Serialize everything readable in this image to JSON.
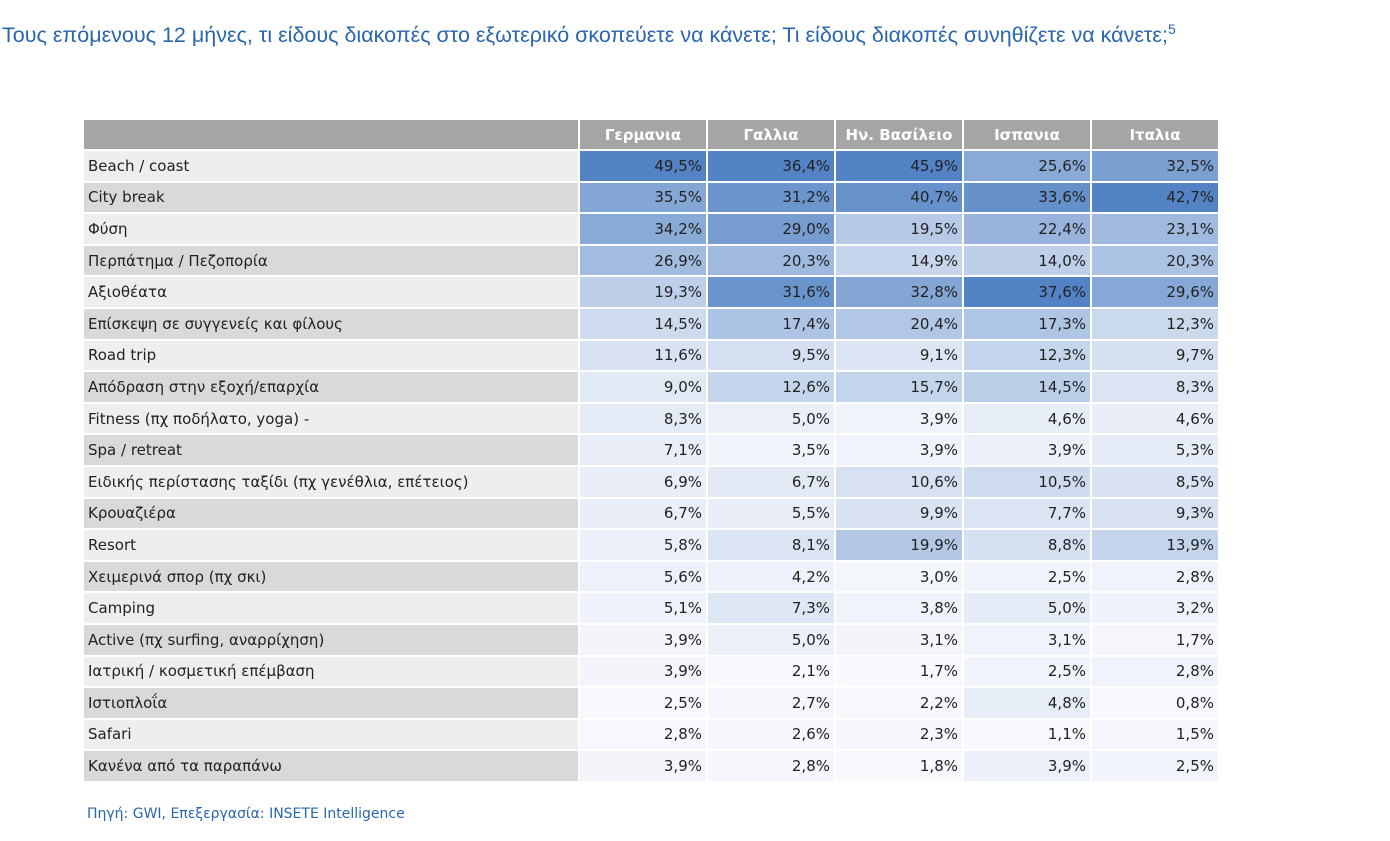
{
  "title": "Τους επόμενους 12 μήνες, τι είδους διακοπές στο εξωτερικό σκοπεύετε να κάνετε; Τι είδους διακοπές συνηθίζετε να κάνετε;",
  "title_footnote": "5",
  "source": "Πηγή: GWI, Επεξεργασία: INSETE Intelligence",
  "colors": {
    "low": "#f8f9fd",
    "high": "#5383c4",
    "header": "#a5a5a5",
    "title": "#2a66ab"
  },
  "chart_data": {
    "type": "heatmap",
    "columns": [
      "Γερμανια",
      "Γαλλια",
      "Ην. Βασίλειο",
      "Ισπανια",
      "Ιταλια"
    ],
    "rows": [
      {
        "label": "Beach / coast",
        "values": [
          "49,5%",
          "36,4%",
          "45,9%",
          "25,6%",
          "32,5%"
        ]
      },
      {
        "label": "City break",
        "values": [
          "35,5%",
          "31,2%",
          "40,7%",
          "33,6%",
          "42,7%"
        ]
      },
      {
        "label": "Φύση",
        "values": [
          "34,2%",
          "29,0%",
          "19,5%",
          "22,4%",
          "23,1%"
        ]
      },
      {
        "label": "Περπάτημα /  Πεζοπορία",
        "values": [
          "26,9%",
          "20,3%",
          "14,9%",
          "14,0%",
          "20,3%"
        ]
      },
      {
        "label": "Αξιοθέατα",
        "values": [
          "19,3%",
          "31,6%",
          "32,8%",
          "37,6%",
          "29,6%"
        ]
      },
      {
        "label": "Επίσκεψη σε συγγενείς και φίλους",
        "values": [
          "14,5%",
          "17,4%",
          "20,4%",
          "17,3%",
          "12,3%"
        ]
      },
      {
        "label": "Road trip",
        "values": [
          "11,6%",
          "9,5%",
          "9,1%",
          "12,3%",
          "9,7%"
        ]
      },
      {
        "label": "Απόδραση στην εξοχή/επαρχία",
        "values": [
          "9,0%",
          "12,6%",
          "15,7%",
          "14,5%",
          "8,3%"
        ]
      },
      {
        "label": "Fitness (πχ ποδήλατο, yoga) -",
        "values": [
          "8,3%",
          "5,0%",
          "3,9%",
          "4,6%",
          "4,6%"
        ]
      },
      {
        "label": "Spa / retreat",
        "values": [
          "7,1%",
          "3,5%",
          "3,9%",
          "3,9%",
          "5,3%"
        ]
      },
      {
        "label": "Ειδικής περίστασης ταξίδι (πχ γενέθλια, επέτειος)",
        "values": [
          "6,9%",
          "6,7%",
          "10,6%",
          "10,5%",
          "8,5%"
        ]
      },
      {
        "label": "Κρουαζιέρα",
        "values": [
          "6,7%",
          "5,5%",
          "9,9%",
          "7,7%",
          "9,3%"
        ]
      },
      {
        "label": "Resort",
        "values": [
          "5,8%",
          "8,1%",
          "19,9%",
          "8,8%",
          "13,9%"
        ]
      },
      {
        "label": "Χειμερινά σπορ (πχ σκι)",
        "values": [
          "5,6%",
          "4,2%",
          "3,0%",
          "2,5%",
          "2,8%"
        ]
      },
      {
        "label": "Camping",
        "values": [
          "5,1%",
          "7,3%",
          "3,8%",
          "5,0%",
          "3,2%"
        ]
      },
      {
        "label": "Active (πχ surfing, αναρρίχηση)",
        "values": [
          "3,9%",
          "5,0%",
          "3,1%",
          "3,1%",
          "1,7%"
        ]
      },
      {
        "label": "Ιατρική / κοσμετική επέμβαση",
        "values": [
          "3,9%",
          "2,1%",
          "1,7%",
          "2,5%",
          "2,8%"
        ]
      },
      {
        "label": "Ιστιοπλοΐα",
        "values": [
          "2,5%",
          "2,7%",
          "2,2%",
          "4,8%",
          "0,8%"
        ]
      },
      {
        "label": "Safari",
        "values": [
          "2,8%",
          "2,6%",
          "2,3%",
          "1,1%",
          "1,5%"
        ]
      },
      {
        "label": "Κανένα από τα παραπάνω",
        "values": [
          "3,9%",
          "2,8%",
          "1,8%",
          "3,9%",
          "2,5%"
        ]
      }
    ]
  }
}
